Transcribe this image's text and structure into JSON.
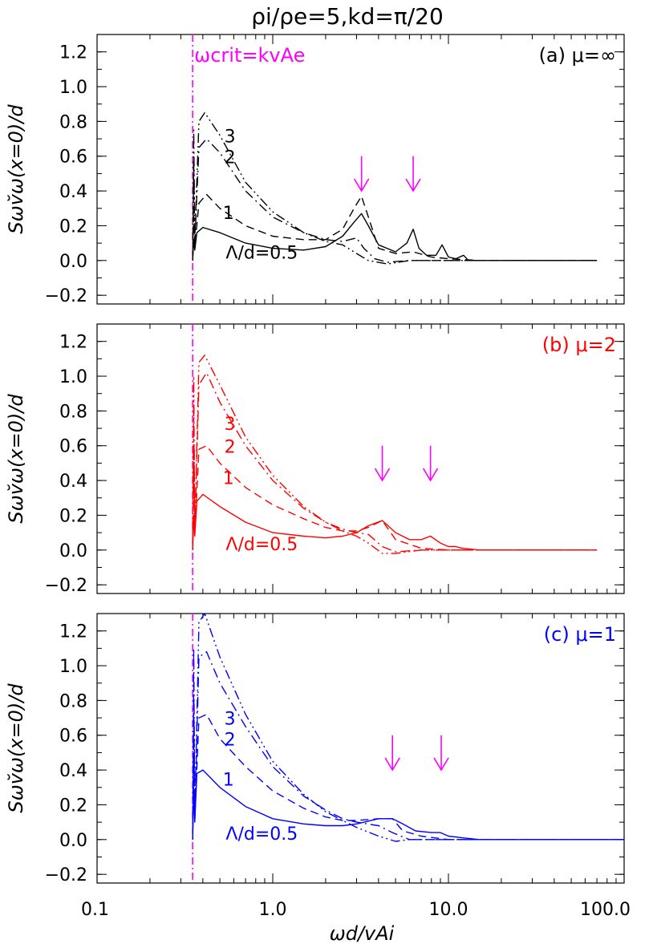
{
  "figure": {
    "title": "ρi/ρe=5,kd=π/20",
    "xlabel": "ωd/vAi",
    "ylabel": "Sωv̆ω(x=0)/d",
    "critical_label": "ωcrit=kvAe"
  },
  "colors": {
    "panel_a": "#000000",
    "panel_b": "#ff0000",
    "panel_c": "#0000ff",
    "marker": "#ff00ff"
  },
  "chart_data": [
    {
      "type": "line",
      "panel_label": "(a) μ=∞",
      "xscale": "log",
      "xlim": [
        0.1,
        100.0
      ],
      "ylim": [
        -0.25,
        1.3
      ],
      "x_ticks": [
        "0.1",
        "1.0",
        "10.0",
        "100.0"
      ],
      "y_ticks": [
        "−0.2",
        "0.0",
        "0.2",
        "0.4",
        "0.6",
        "0.8",
        "1.0",
        "1.2"
      ],
      "critical_x": 0.35,
      "arrow_x": [
        3.2,
        6.3
      ],
      "curve_labels": [
        {
          "text": "3",
          "x": 0.53,
          "y": 0.68
        },
        {
          "text": "2",
          "x": 0.53,
          "y": 0.56
        },
        {
          "text": "1",
          "x": 0.52,
          "y": 0.24
        },
        {
          "text": "Λ/d=0.5",
          "x": 0.54,
          "y": 0.01
        }
      ],
      "series": [
        {
          "style": "solid",
          "x": [
            0.35,
            0.355,
            0.36,
            0.37,
            0.4,
            0.5,
            0.7,
            1.0,
            1.5,
            2.0,
            2.5,
            2.9,
            3.2,
            3.5,
            4.0,
            5.0,
            5.8,
            6.3,
            6.8,
            7.5,
            8.5,
            9.2,
            10.0,
            11.0,
            12.2,
            13.0,
            15.0,
            20.0,
            30.0,
            70.0
          ],
          "y": [
            0.0,
            0.12,
            0.06,
            0.16,
            0.19,
            0.16,
            0.1,
            0.07,
            0.06,
            0.08,
            0.14,
            0.22,
            0.27,
            0.2,
            0.09,
            0.05,
            0.1,
            0.18,
            0.07,
            0.03,
            0.03,
            0.09,
            0.02,
            0.01,
            0.03,
            0.0,
            0.0,
            0.0,
            0.0,
            0.0
          ]
        },
        {
          "style": "dashed",
          "x": [
            0.35,
            0.355,
            0.36,
            0.38,
            0.42,
            0.5,
            0.7,
            1.0,
            1.5,
            2.0,
            2.5,
            2.9,
            3.2,
            3.5,
            4.0,
            5.0,
            6.3,
            8.0,
            10.0,
            15.0,
            20.0,
            70.0
          ],
          "y": [
            0.0,
            0.25,
            0.08,
            0.33,
            0.38,
            0.3,
            0.2,
            0.14,
            0.12,
            0.12,
            0.18,
            0.3,
            0.37,
            0.25,
            0.07,
            0.04,
            0.05,
            0.02,
            0.01,
            0.0,
            0.0,
            0.0
          ]
        },
        {
          "style": "dash-dot",
          "x": [
            0.35,
            0.355,
            0.36,
            0.38,
            0.42,
            0.5,
            0.7,
            1.0,
            1.5,
            2.0,
            2.5,
            3.0,
            3.3,
            3.8,
            4.5,
            6.0,
            8.0,
            10.0,
            15.0,
            70.0
          ],
          "y": [
            0.0,
            0.55,
            0.1,
            0.65,
            0.7,
            0.62,
            0.4,
            0.25,
            0.16,
            0.12,
            0.11,
            0.13,
            0.07,
            0.01,
            -0.01,
            0.0,
            0.0,
            0.0,
            0.0,
            0.0
          ]
        },
        {
          "style": "dash-dot-dot",
          "x": [
            0.35,
            0.355,
            0.36,
            0.38,
            0.41,
            0.5,
            0.7,
            1.0,
            1.5,
            2.0,
            2.5,
            3.0,
            3.5,
            4.5,
            6.0,
            8.0,
            10.0,
            15.0,
            70.0
          ],
          "y": [
            0.0,
            0.75,
            0.12,
            0.8,
            0.85,
            0.72,
            0.45,
            0.28,
            0.16,
            0.11,
            0.09,
            0.04,
            0.0,
            -0.02,
            0.0,
            0.0,
            0.0,
            0.0,
            0.0
          ]
        }
      ]
    },
    {
      "type": "line",
      "panel_label": "(b) μ=2",
      "xscale": "log",
      "xlim": [
        0.1,
        100.0
      ],
      "ylim": [
        -0.25,
        1.3
      ],
      "x_ticks": [
        "0.1",
        "1.0",
        "10.0",
        "100.0"
      ],
      "y_ticks": [
        "−0.2",
        "0.0",
        "0.2",
        "0.4",
        "0.6",
        "0.8",
        "1.0",
        "1.2"
      ],
      "critical_x": 0.35,
      "arrow_x": [
        4.2,
        7.9
      ],
      "curve_labels": [
        {
          "text": "3",
          "x": 0.53,
          "y": 0.69
        },
        {
          "text": "2",
          "x": 0.53,
          "y": 0.56
        },
        {
          "text": "1",
          "x": 0.52,
          "y": 0.38
        },
        {
          "text": "Λ/d=0.5",
          "x": 0.54,
          "y": 0.0
        }
      ],
      "series": [
        {
          "style": "solid",
          "x": [
            0.35,
            0.355,
            0.36,
            0.37,
            0.4,
            0.5,
            0.7,
            1.0,
            1.5,
            2.0,
            2.5,
            3.0,
            3.5,
            4.2,
            5.0,
            6.0,
            7.0,
            7.9,
            9.0,
            10.0,
            11.0,
            12.0,
            15.0,
            20.0,
            70.0
          ],
          "y": [
            0.0,
            0.2,
            0.08,
            0.28,
            0.32,
            0.25,
            0.16,
            0.1,
            0.08,
            0.07,
            0.08,
            0.1,
            0.14,
            0.17,
            0.1,
            0.06,
            0.06,
            0.08,
            0.04,
            0.02,
            0.02,
            0.01,
            0.0,
            0.0,
            0.0
          ]
        },
        {
          "style": "dashed",
          "x": [
            0.35,
            0.355,
            0.36,
            0.38,
            0.42,
            0.5,
            0.7,
            1.0,
            1.5,
            2.0,
            2.5,
            3.0,
            3.5,
            4.2,
            5.0,
            7.0,
            10.0,
            15.0,
            70.0
          ],
          "y": [
            0.0,
            0.55,
            0.1,
            0.58,
            0.6,
            0.5,
            0.36,
            0.26,
            0.18,
            0.13,
            0.11,
            0.11,
            0.13,
            0.17,
            0.06,
            0.01,
            0.0,
            0.0,
            0.0
          ]
        },
        {
          "style": "dash-dot",
          "x": [
            0.35,
            0.355,
            0.36,
            0.38,
            0.42,
            0.5,
            0.7,
            1.0,
            1.5,
            2.0,
            2.5,
            3.0,
            3.5,
            4.2,
            5.0,
            7.0,
            10.0,
            15.0,
            70.0
          ],
          "y": [
            0.0,
            0.8,
            0.12,
            0.95,
            1.02,
            0.85,
            0.6,
            0.4,
            0.24,
            0.16,
            0.12,
            0.1,
            0.09,
            0.02,
            -0.01,
            0.0,
            0.0,
            0.0,
            0.0
          ]
        },
        {
          "style": "dash-dot-dot",
          "x": [
            0.35,
            0.355,
            0.36,
            0.38,
            0.41,
            0.5,
            0.7,
            1.0,
            1.5,
            2.0,
            2.5,
            3.0,
            3.5,
            4.2,
            5.0,
            7.0,
            10.0,
            15.0,
            70.0
          ],
          "y": [
            0.0,
            1.0,
            0.12,
            1.08,
            1.12,
            0.95,
            0.65,
            0.43,
            0.25,
            0.16,
            0.11,
            0.08,
            0.04,
            -0.02,
            -0.02,
            0.0,
            0.0,
            0.0,
            0.0
          ]
        }
      ]
    },
    {
      "type": "line",
      "panel_label": "(c) μ=1",
      "xscale": "log",
      "xlim": [
        0.1,
        100.0
      ],
      "ylim": [
        -0.25,
        1.3
      ],
      "x_ticks": [
        "0.1",
        "1.0",
        "10.0",
        "100.0"
      ],
      "y_ticks": [
        "−0.2",
        "0.0",
        "0.2",
        "0.4",
        "0.6",
        "0.8",
        "1.0",
        "1.2"
      ],
      "critical_x": 0.35,
      "arrow_x": [
        4.8,
        9.1
      ],
      "curve_labels": [
        {
          "text": "3",
          "x": 0.53,
          "y": 0.66
        },
        {
          "text": "2",
          "x": 0.53,
          "y": 0.54
        },
        {
          "text": "1",
          "x": 0.52,
          "y": 0.31
        },
        {
          "text": "Λ/d=0.5",
          "x": 0.54,
          "y": 0.0
        }
      ],
      "series": [
        {
          "style": "solid",
          "x": [
            0.35,
            0.355,
            0.36,
            0.37,
            0.4,
            0.5,
            0.7,
            1.0,
            1.5,
            2.0,
            2.5,
            3.0,
            4.0,
            4.8,
            5.5,
            6.5,
            8.0,
            9.0,
            10.0,
            12.0,
            15.0,
            20.0,
            100.0
          ],
          "y": [
            0.0,
            0.3,
            0.1,
            0.38,
            0.4,
            0.3,
            0.19,
            0.12,
            0.09,
            0.08,
            0.08,
            0.09,
            0.12,
            0.12,
            0.09,
            0.05,
            0.04,
            0.04,
            0.02,
            0.01,
            0.0,
            0.0,
            0.0
          ]
        },
        {
          "style": "dashed",
          "x": [
            0.35,
            0.355,
            0.36,
            0.38,
            0.42,
            0.5,
            0.7,
            1.0,
            1.5,
            2.0,
            2.5,
            3.0,
            4.0,
            4.8,
            5.5,
            7.0,
            10.0,
            15.0,
            20.0,
            100.0
          ],
          "y": [
            0.0,
            0.62,
            0.12,
            0.7,
            0.72,
            0.58,
            0.42,
            0.28,
            0.18,
            0.13,
            0.11,
            0.11,
            0.12,
            0.12,
            0.05,
            0.02,
            0.0,
            0.0,
            0.0,
            0.0
          ]
        },
        {
          "style": "dash-dot",
          "x": [
            0.35,
            0.355,
            0.36,
            0.38,
            0.42,
            0.5,
            0.7,
            1.0,
            1.5,
            2.0,
            2.5,
            3.0,
            4.0,
            4.8,
            6.0,
            8.0,
            10.0,
            15.0,
            100.0
          ],
          "y": [
            0.0,
            0.9,
            0.12,
            1.05,
            1.08,
            0.9,
            0.65,
            0.42,
            0.25,
            0.17,
            0.12,
            0.1,
            0.08,
            0.04,
            0.0,
            0.0,
            0.0,
            0.0,
            0.0
          ]
        },
        {
          "style": "dash-dot-dot",
          "x": [
            0.35,
            0.355,
            0.36,
            0.38,
            0.41,
            0.5,
            0.7,
            1.0,
            1.5,
            2.0,
            2.5,
            3.0,
            4.0,
            5.0,
            6.0,
            8.0,
            10.0,
            15.0,
            100.0
          ],
          "y": [
            0.0,
            1.1,
            0.12,
            1.25,
            1.3,
            1.05,
            0.72,
            0.45,
            0.26,
            0.16,
            0.11,
            0.07,
            0.02,
            -0.01,
            0.0,
            0.0,
            0.0,
            0.0,
            0.0
          ]
        }
      ]
    }
  ]
}
